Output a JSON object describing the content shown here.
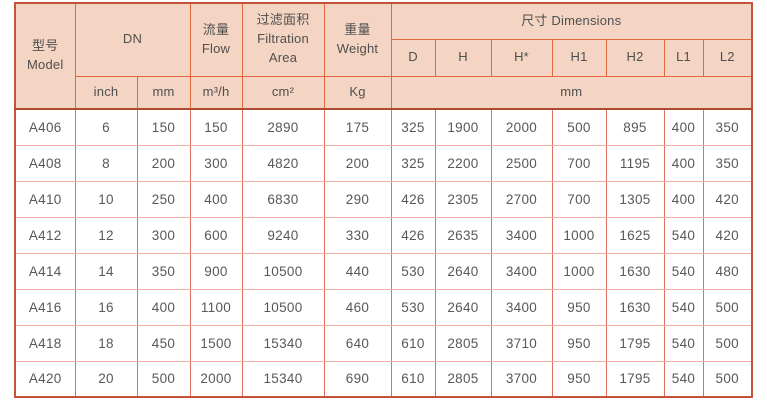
{
  "table": {
    "header": {
      "model": {
        "zh": "型号",
        "en": "Model"
      },
      "dn_label": "DN",
      "flow": {
        "zh": "流量",
        "en": "Flow"
      },
      "filtration": {
        "zh": "过滤面积",
        "en": "Filtration Area"
      },
      "weight": {
        "zh": "重量",
        "en": "Weight"
      },
      "dimensions": {
        "zh": "尺寸",
        "en": "Dimensions"
      },
      "dim_cols": [
        "D",
        "H",
        "H*",
        "H1",
        "H2",
        "L1",
        "L2"
      ],
      "units": {
        "dn_inch": "inch",
        "dn_mm": "mm",
        "flow": "m³/h",
        "filtration": "cm²",
        "weight": "Kg",
        "dimensions": "mm"
      }
    },
    "colors": {
      "header_bg": "#f4d5c3",
      "header_border": "#e1673e",
      "outer_border": "#c5523a",
      "header_separator": "#ad4a31",
      "body_border_vertical": "#dd6f61",
      "body_border_horizontal": "#f0aea5",
      "text": "#585858"
    },
    "rows": [
      {
        "model": "A406",
        "inch": "6",
        "mm": "150",
        "flow": "150",
        "area": "2890",
        "weight": "175",
        "dims": [
          "325",
          "1900",
          "2000",
          "500",
          "895",
          "400",
          "350"
        ]
      },
      {
        "model": "A408",
        "inch": "8",
        "mm": "200",
        "flow": "300",
        "area": "4820",
        "weight": "200",
        "dims": [
          "325",
          "2200",
          "2500",
          "700",
          "1195",
          "400",
          "350"
        ]
      },
      {
        "model": "A410",
        "inch": "10",
        "mm": "250",
        "flow": "400",
        "area": "6830",
        "weight": "290",
        "dims": [
          "426",
          "2305",
          "2700",
          "700",
          "1305",
          "400",
          "420"
        ]
      },
      {
        "model": "A412",
        "inch": "12",
        "mm": "300",
        "flow": "600",
        "area": "9240",
        "weight": "330",
        "dims": [
          "426",
          "2635",
          "3400",
          "1000",
          "1625",
          "540",
          "420"
        ]
      },
      {
        "model": "A414",
        "inch": "14",
        "mm": "350",
        "flow": "900",
        "area": "10500",
        "weight": "440",
        "dims": [
          "530",
          "2640",
          "3400",
          "1000",
          "1630",
          "540",
          "480"
        ]
      },
      {
        "model": "A416",
        "inch": "16",
        "mm": "400",
        "flow": "1100",
        "area": "10500",
        "weight": "460",
        "dims": [
          "530",
          "2640",
          "3400",
          "950",
          "1630",
          "540",
          "500"
        ]
      },
      {
        "model": "A418",
        "inch": "18",
        "mm": "450",
        "flow": "1500",
        "area": "15340",
        "weight": "640",
        "dims": [
          "610",
          "2805",
          "3710",
          "950",
          "1795",
          "540",
          "500"
        ]
      },
      {
        "model": "A420",
        "inch": "20",
        "mm": "500",
        "flow": "2000",
        "area": "15340",
        "weight": "690",
        "dims": [
          "610",
          "2805",
          "3700",
          "950",
          "1795",
          "540",
          "500"
        ]
      }
    ]
  }
}
